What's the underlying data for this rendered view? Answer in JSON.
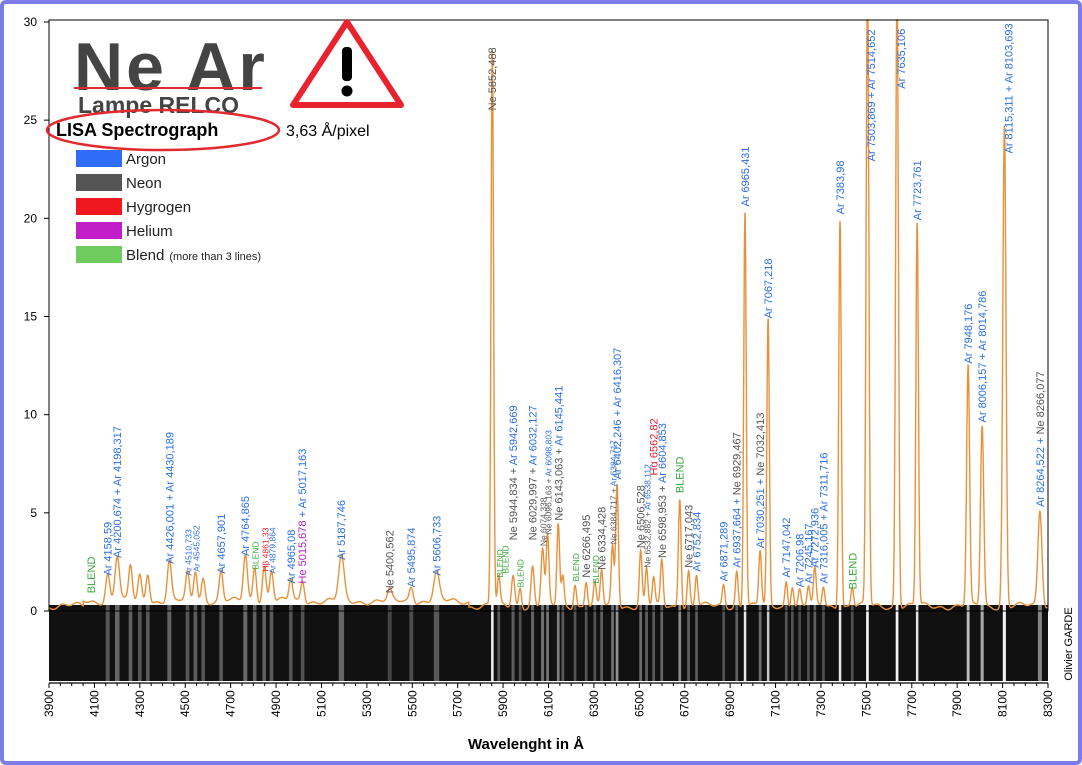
{
  "chart_data": {
    "type": "line",
    "title": "Ne Ar",
    "subtitle": "Lampe RELCO",
    "instrument": "LISA Spectrograph",
    "dispersion": "3,63 Å/pixel",
    "xlabel": "Wavelenght in Å",
    "credit": "Olivier GARDE",
    "xlim": [
      3900,
      8300
    ],
    "ylim": [
      0,
      30
    ],
    "x_ticks": [
      3900,
      4100,
      4300,
      4500,
      4700,
      4900,
      5100,
      5300,
      5500,
      5700,
      5900,
      6100,
      6300,
      6500,
      6700,
      6900,
      7100,
      7300,
      7500,
      7700,
      7900,
      8100,
      8300
    ],
    "y_ticks": [
      0,
      5,
      10,
      15,
      20,
      25,
      30
    ],
    "colors": {
      "argon": "#2b6fe0",
      "neon": "#555555",
      "hydrogen": "#e8222e",
      "helium": "#b520c8",
      "blend": "#3ea83e",
      "curve": "#e8913a",
      "warning": "#e8232e",
      "circle": "#e12a2f"
    },
    "legend": [
      {
        "label": "Argon",
        "color": "#2f6df6"
      },
      {
        "label": "Neon",
        "color": "#555555"
      },
      {
        "label": "Hygrogen",
        "color": "#f0181e"
      },
      {
        "label": "Helium",
        "color": "#c21ec8"
      },
      {
        "label": "Blend",
        "note": "(more than 3 lines)",
        "color": "#6fcc5e"
      }
    ],
    "peaks": [
      {
        "x": 4158.59,
        "y": 1.4,
        "w": 9
      },
      {
        "x": 4200.67,
        "y": 2.3,
        "w": 10
      },
      {
        "x": 4259,
        "y": 1.8,
        "w": 8
      },
      {
        "x": 4300,
        "y": 1.3,
        "w": 8
      },
      {
        "x": 4335,
        "y": 1.5,
        "w": 8
      },
      {
        "x": 4430,
        "y": 2.0,
        "w": 9
      },
      {
        "x": 4510,
        "y": 1.4,
        "w": 8
      },
      {
        "x": 4545,
        "y": 1.6,
        "w": 8
      },
      {
        "x": 4579,
        "y": 1.2,
        "w": 8
      },
      {
        "x": 4657.9,
        "y": 1.5,
        "w": 8
      },
      {
        "x": 4764.87,
        "y": 2.4,
        "w": 9
      },
      {
        "x": 4806,
        "y": 1.8,
        "w": 8
      },
      {
        "x": 4848,
        "y": 1.8,
        "w": 8
      },
      {
        "x": 4880,
        "y": 1.6,
        "w": 8
      },
      {
        "x": 4965,
        "y": 1.1,
        "w": 8
      },
      {
        "x": 5017,
        "y": 1.1,
        "w": 8
      },
      {
        "x": 5187.75,
        "y": 2.2,
        "w": 12
      },
      {
        "x": 5400.56,
        "y": 0.5,
        "w": 9
      },
      {
        "x": 5495.87,
        "y": 0.8,
        "w": 9
      },
      {
        "x": 5606.73,
        "y": 1.4,
        "w": 12
      },
      {
        "x": 5852.49,
        "y": 28.4,
        "w": 5.5
      },
      {
        "x": 5881,
        "y": 1.4,
        "w": 6
      },
      {
        "x": 5944,
        "y": 1.6,
        "w": 7
      },
      {
        "x": 5975,
        "y": 1.0,
        "w": 6
      },
      {
        "x": 6030,
        "y": 2.0,
        "w": 7
      },
      {
        "x": 6074,
        "y": 2.9,
        "w": 7
      },
      {
        "x": 6096,
        "y": 3.5,
        "w": 6
      },
      {
        "x": 6143,
        "y": 4.2,
        "w": 6
      },
      {
        "x": 6163,
        "y": 1.5,
        "w": 6
      },
      {
        "x": 6217,
        "y": 1.2,
        "w": 6
      },
      {
        "x": 6266,
        "y": 1.3,
        "w": 6
      },
      {
        "x": 6304,
        "y": 1.1,
        "w": 6
      },
      {
        "x": 6334,
        "y": 1.8,
        "w": 6
      },
      {
        "x": 6382,
        "y": 3.0,
        "w": 6
      },
      {
        "x": 6402,
        "y": 6.3,
        "w": 6
      },
      {
        "x": 6506,
        "y": 2.8,
        "w": 6
      },
      {
        "x": 6532,
        "y": 1.9,
        "w": 6
      },
      {
        "x": 6563,
        "y": 1.4,
        "w": 6
      },
      {
        "x": 6599,
        "y": 2.3,
        "w": 6
      },
      {
        "x": 6678,
        "y": 5.6,
        "w": 6
      },
      {
        "x": 6717,
        "y": 1.8,
        "w": 6
      },
      {
        "x": 6752,
        "y": 1.6,
        "w": 6
      },
      {
        "x": 6871.29,
        "y": 1.1,
        "w": 6
      },
      {
        "x": 6929,
        "y": 1.8,
        "w": 6
      },
      {
        "x": 6965.43,
        "y": 20.2,
        "w": 5.5
      },
      {
        "x": 7032,
        "y": 2.8,
        "w": 6
      },
      {
        "x": 7067.22,
        "y": 14.5,
        "w": 5.5
      },
      {
        "x": 7147,
        "y": 1.3,
        "w": 6
      },
      {
        "x": 7174,
        "y": 1.1,
        "w": 6
      },
      {
        "x": 7206,
        "y": 0.8,
        "w": 6
      },
      {
        "x": 7245,
        "y": 1.0,
        "w": 6
      },
      {
        "x": 7272.94,
        "y": 1.8,
        "w": 6
      },
      {
        "x": 7311,
        "y": 1.0,
        "w": 6
      },
      {
        "x": 7383.98,
        "y": 19.8,
        "w": 5.5
      },
      {
        "x": 7438,
        "y": 1.0,
        "w": 6
      },
      {
        "x": 7505,
        "y": 32,
        "w": 6
      },
      {
        "x": 7635.11,
        "y": 32,
        "w": 6
      },
      {
        "x": 7723.76,
        "y": 19.5,
        "w": 5.5
      },
      {
        "x": 7948.18,
        "y": 12.2,
        "w": 6.5
      },
      {
        "x": 8010,
        "y": 9.2,
        "w": 7
      },
      {
        "x": 8108,
        "y": 24.5,
        "w": 7
      },
      {
        "x": 8264.52,
        "y": 4.9,
        "w": 9
      }
    ],
    "labels": [
      {
        "x": 4085,
        "y": 0.8,
        "text": "BLEND",
        "el": "blend"
      },
      {
        "x": 4158,
        "y": 1.7,
        "text": "Ar 4158,59",
        "el": "argon"
      },
      {
        "x": 4200,
        "y": 2.6,
        "text": "Ar 4200,674 + Ar 4198,317",
        "el": "argon"
      },
      {
        "x": 4430,
        "y": 2.3,
        "text": "Ar 4426,001 + Ar 4430,189",
        "el": "argon"
      },
      {
        "x": 4510,
        "y": 1.7,
        "text": "Ar 4510,733",
        "el": "argon",
        "small": true
      },
      {
        "x": 4545,
        "y": 1.9,
        "text": "Ar 4545,052",
        "el": "argon",
        "small": true
      },
      {
        "x": 4657,
        "y": 1.8,
        "text": "Ar 4657,901",
        "el": "argon"
      },
      {
        "x": 4764,
        "y": 2.7,
        "text": "Ar 4764,865",
        "el": "argon"
      },
      {
        "x": 4806,
        "y": 2.0,
        "text": "BLEND",
        "el": "blend",
        "small": true
      },
      {
        "x": 4849,
        "y": 1.9,
        "text": "Hβ 4861,33",
        "el": "hydrogen",
        "small": true
      },
      {
        "x": 4880,
        "y": 1.8,
        "text": "Ar 4879,864",
        "el": "argon",
        "small": true
      },
      {
        "x": 4965,
        "y": 1.3,
        "text": "Ar 4965,08",
        "el": "argon"
      },
      {
        "x": 5014,
        "y": 1.3,
        "text": "He 5015,678",
        "el": "helium",
        "rest": " + Ar 5017,163"
      },
      {
        "x": 5187,
        "y": 2.5,
        "text": "Ar 5187,746",
        "el": "argon"
      },
      {
        "x": 5400,
        "y": 0.8,
        "text": "Ne 5400,562",
        "el": "neon"
      },
      {
        "x": 5495,
        "y": 1.1,
        "text": "Ar 5495,874",
        "el": "argon"
      },
      {
        "x": 5606,
        "y": 1.7,
        "text": "Ar 5606,733",
        "el": "argon"
      },
      {
        "x": 5852,
        "y": 25.4,
        "text": "Ne 5852,488",
        "el": "neon"
      },
      {
        "x": 5881,
        "y": 1.6,
        "text": "BLEND",
        "el": "blend",
        "small": true
      },
      {
        "x": 5906,
        "y": 1.8,
        "text": "BLEND",
        "el": "blend",
        "small": true
      },
      {
        "x": 5944,
        "y": 3.5,
        "text": "Ne 5944,834 + Ar 5942,669",
        "el": "mix",
        "parts": [
          [
            "Ne 5944,834 + ",
            "neon"
          ],
          [
            "Ar 5942,669",
            "argon"
          ]
        ]
      },
      {
        "x": 5972,
        "y": 1.1,
        "text": "BLEND",
        "el": "blend",
        "small": true
      },
      {
        "x": 6030,
        "y": 3.5,
        "text": "Ne 6029,997 + Ar 6032,127",
        "el": "mix",
        "parts": [
          [
            "Ne 6029,997 + ",
            "neon"
          ],
          [
            "Ar 6032,127",
            "argon"
          ]
        ]
      },
      {
        "x": 6074,
        "y": 3.2,
        "text": "Ne 6074,338",
        "el": "neon",
        "small": true
      },
      {
        "x": 6096,
        "y": 3.8,
        "text": "Ne 6096,163 + Ar 6098,803",
        "el": "mix",
        "small": true,
        "parts": [
          [
            "Ne 6096,163 + ",
            "neon"
          ],
          [
            "Ar 6098,803",
            "argon"
          ]
        ]
      },
      {
        "x": 6143,
        "y": 4.5,
        "text": "Ne 6143,063 + Ar 6145,441",
        "el": "mix",
        "parts": [
          [
            "Ne 6143,063 + ",
            "neon"
          ],
          [
            "Ar 6145,441",
            "argon"
          ]
        ]
      },
      {
        "x": 6217,
        "y": 1.4,
        "text": "BLEND",
        "el": "blend",
        "small": true
      },
      {
        "x": 6266,
        "y": 1.6,
        "text": "Ne 6266,495",
        "el": "neon"
      },
      {
        "x": 6304,
        "y": 1.3,
        "text": "BLEND",
        "el": "blend",
        "small": true
      },
      {
        "x": 6334,
        "y": 2.0,
        "text": "Ne 6334,428",
        "el": "neon"
      },
      {
        "x": 6382,
        "y": 3.3,
        "text": "Ne 6384,717 + Ar 6384,717",
        "el": "mix",
        "small": true,
        "parts": [
          [
            "Ne 6384,717 + ",
            "neon"
          ],
          [
            "Ar 6384,717",
            "argon"
          ]
        ]
      },
      {
        "x": 6402,
        "y": 6.6,
        "text": "Ar 6402,246 + Ar 6416,307",
        "el": "argon"
      },
      {
        "x": 6506,
        "y": 3.1,
        "text": "Ne 6506,528",
        "el": "neon"
      },
      {
        "x": 6532,
        "y": 2.1,
        "text": "Ne 6532,882 + Ar 6538,112",
        "el": "mix",
        "small": true,
        "parts": [
          [
            "Ne 6532,882 + ",
            "neon"
          ],
          [
            "Ar 6538,112",
            "argon"
          ]
        ]
      },
      {
        "x": 6563,
        "y": 6.8,
        "text": "Hα 6562,82",
        "el": "hydrogen"
      },
      {
        "x": 6599,
        "y": 2.6,
        "text": "Ne 6598,953 + Ar 6604,853",
        "el": "mix",
        "parts": [
          [
            "Ne 6598,953 + ",
            "neon"
          ],
          [
            "Ar 6604,853",
            "argon"
          ]
        ]
      },
      {
        "x": 6678,
        "y": 5.9,
        "text": "BLEND",
        "el": "blend"
      },
      {
        "x": 6717,
        "y": 2.1,
        "text": "Ne 6717,043",
        "el": "neon"
      },
      {
        "x": 6752,
        "y": 1.9,
        "text": "Ar 6752,834",
        "el": "argon"
      },
      {
        "x": 6871,
        "y": 1.4,
        "text": "Ar 6871,289",
        "el": "argon"
      },
      {
        "x": 6929,
        "y": 2.1,
        "text": "Ar 6937,664 + Ne 6929,467",
        "el": "mix",
        "parts": [
          [
            "Ar 6937,664 + ",
            "argon"
          ],
          [
            "Ne 6929,467",
            "neon"
          ]
        ]
      },
      {
        "x": 6965,
        "y": 20.5,
        "text": "Ar 6965,431",
        "el": "argon"
      },
      {
        "x": 7032,
        "y": 3.1,
        "text": "Ar 7030,251 + Ne 7032,413",
        "el": "mix",
        "parts": [
          [
            "Ar 7030,251 + ",
            "argon"
          ],
          [
            "Ne 7032,413",
            "neon"
          ]
        ]
      },
      {
        "x": 7067,
        "y": 14.8,
        "text": "Ar 7067,218",
        "el": "argon"
      },
      {
        "x": 7147,
        "y": 1.6,
        "text": "Ar 7147,042",
        "el": "argon"
      },
      {
        "x": 7206,
        "y": 1.1,
        "text": "Ar 7206,98",
        "el": "argon"
      },
      {
        "x": 7245,
        "y": 1.3,
        "text": "Ar 7245,167",
        "el": "argon"
      },
      {
        "x": 7272,
        "y": 2.1,
        "text": "Ar 7272,936",
        "el": "argon"
      },
      {
        "x": 7311,
        "y": 1.3,
        "text": "Ar 7316,005 + Ar 7311,716",
        "el": "argon"
      },
      {
        "x": 7383,
        "y": 20.1,
        "text": "Ar 7383,98",
        "el": "argon"
      },
      {
        "x": 7438,
        "y": 1.0,
        "text": "BLEND",
        "el": "blend"
      },
      {
        "x": 7521,
        "y": 22.8,
        "text": "Ar 7503,869 + Ar 7514,652",
        "el": "argon"
      },
      {
        "x": 7652,
        "y": 26.5,
        "text": "Ar 7635,106",
        "el": "argon"
      },
      {
        "x": 7723,
        "y": 19.8,
        "text": "Ar 7723,761",
        "el": "argon"
      },
      {
        "x": 7948,
        "y": 12.5,
        "text": "Ar 7948,176",
        "el": "argon"
      },
      {
        "x": 8010,
        "y": 9.5,
        "text": "Ar 8006,157 + Ar 8014,786",
        "el": "argon"
      },
      {
        "x": 8125,
        "y": 23.2,
        "text": "Ar 8115,311 + Ar 8103,693",
        "el": "argon"
      },
      {
        "x": 8264,
        "y": 5.2,
        "text": "Ar 8264,522 + Ne 8266,077",
        "el": "mix",
        "parts": [
          [
            "Ar 8264,522 + ",
            "argon"
          ],
          [
            "Ne 8266,077",
            "neon"
          ]
        ]
      }
    ]
  }
}
